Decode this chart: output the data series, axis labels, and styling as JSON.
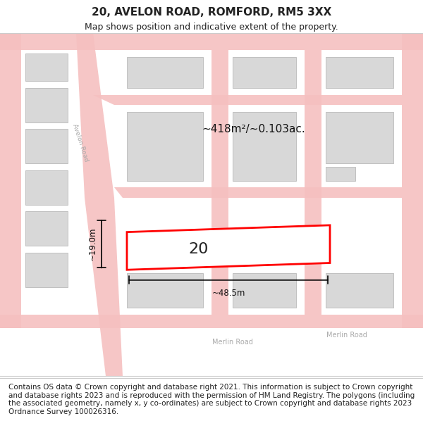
{
  "title": "20, AVELON ROAD, ROMFORD, RM5 3XX",
  "subtitle": "Map shows position and indicative extent of the property.",
  "footer": "Contains OS data © Crown copyright and database right 2021. This information is subject to Crown copyright and database rights 2023 and is reproduced with the permission of HM Land Registry. The polygons (including the associated geometry, namely x, y co-ordinates) are subject to Crown copyright and database rights 2023 Ordnance Survey 100026316.",
  "bg_color": "#f5f5f5",
  "map_bg": "#f5f5f5",
  "road_color": "#f5a0a0",
  "building_color": "#d8d8d8",
  "building_edge": "#c0c0c0",
  "highlight_color": "#ff0000",
  "highlight_fill": "#ffffff",
  "street_label_color": "#888888",
  "dim_color": "#000000",
  "area_label": "~418m²/~0.103ac.",
  "width_label": "~48.5m",
  "height_label": "~19.0m",
  "plot_number": "20",
  "title_fontsize": 11,
  "subtitle_fontsize": 9,
  "footer_fontsize": 7.5
}
